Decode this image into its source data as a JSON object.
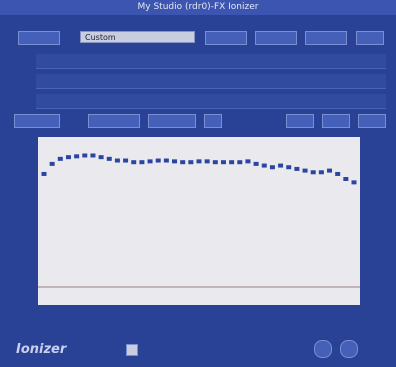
{
  "window": {
    "title": "My Studio (rdr0)-FX Ionizer"
  },
  "toolbar": {
    "preset": "Custom"
  },
  "footer": {
    "brand": "Ionizer"
  },
  "curve": {
    "ylim": [
      0,
      100
    ],
    "color": "#2b45a0",
    "values": [
      78,
      84,
      87,
      88,
      88.5,
      89,
      89,
      88,
      87,
      86,
      86,
      85,
      85,
      85.5,
      86,
      86,
      85.5,
      85,
      85,
      85.5,
      85.5,
      85,
      85,
      85,
      85,
      85.5,
      84,
      83,
      82,
      83,
      82,
      81,
      80,
      79,
      79,
      80,
      78,
      75,
      73
    ]
  }
}
